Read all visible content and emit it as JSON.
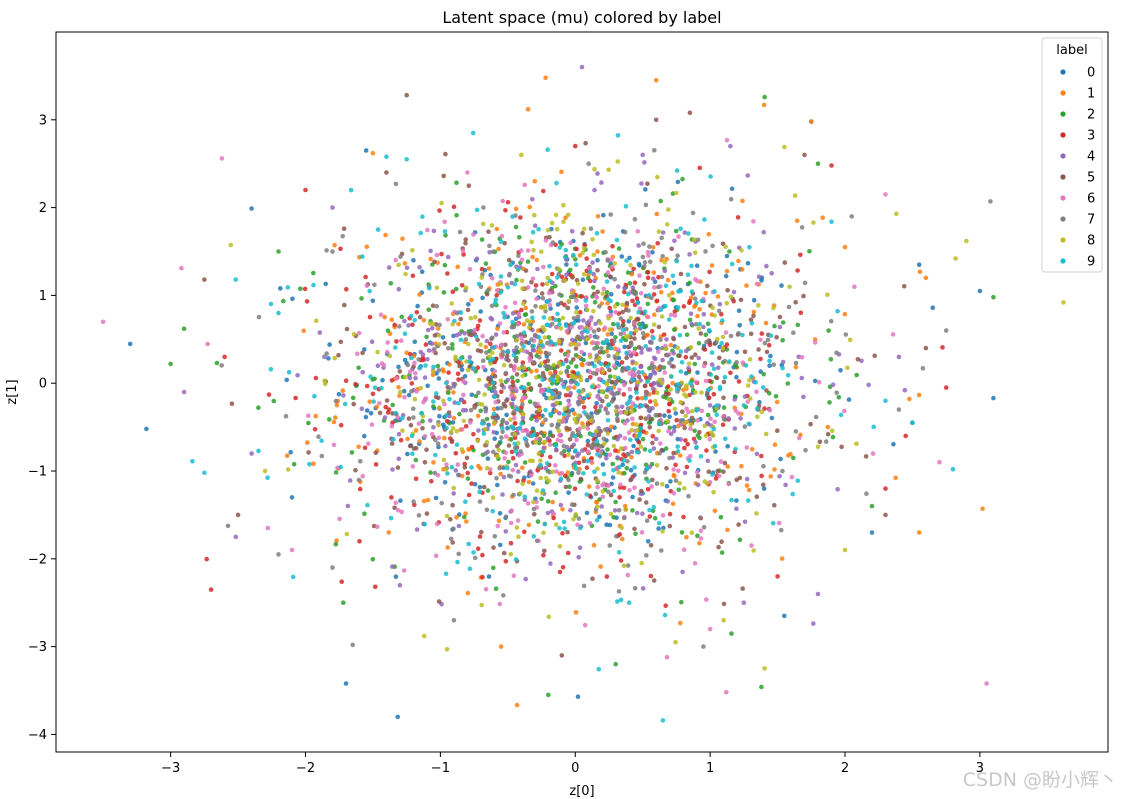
{
  "chart_data": {
    "type": "scatter",
    "title": "Latent space (mu) colored by label",
    "xlabel": "z[0]",
    "ylabel": "z[1]",
    "xlim": [
      -3.85,
      3.95
    ],
    "ylim": [
      -4.2,
      4.0
    ],
    "xticks": [
      -3,
      -2,
      -1,
      0,
      1,
      2,
      3
    ],
    "yticks": [
      -4,
      -3,
      -2,
      -1,
      0,
      1,
      2,
      3
    ],
    "grid": false,
    "legend": {
      "title": "label",
      "placement": "top-right"
    },
    "colors": [
      "#1f77b4",
      "#ff7f0e",
      "#2ca02c",
      "#d62728",
      "#9467bd",
      "#8c564b",
      "#e377c2",
      "#7f7f7f",
      "#bcbd22",
      "#17becf"
    ],
    "series": [
      {
        "name": "0",
        "points": [
          [
            -3.18,
            -0.52
          ],
          [
            -2.4,
            1.99
          ],
          [
            0.02,
            -3.57
          ],
          [
            2.65,
            0.86
          ],
          [
            3.1,
            -0.17
          ],
          [
            3.0,
            1.05
          ],
          [
            -1.55,
            2.65
          ],
          [
            1.55,
            -2.65
          ],
          [
            -1.7,
            -3.42
          ],
          [
            2.5,
            -0.45
          ],
          [
            2.55,
            1.35
          ],
          [
            1.75,
            2.98
          ],
          [
            -2.1,
            -1.3
          ],
          [
            2.2,
            -1.7
          ],
          [
            1.4,
            -1.2
          ],
          [
            -1.2,
            1.4
          ]
        ],
        "count": 330,
        "spread": [
          0.85,
          0.95
        ]
      },
      {
        "name": "1",
        "points": [
          [
            -0.22,
            3.48
          ],
          [
            0.6,
            3.45
          ],
          [
            1.4,
            3.17
          ],
          [
            -0.35,
            3.12
          ],
          [
            1.75,
            2.98
          ],
          [
            3.02,
            -1.43
          ],
          [
            -0.55,
            -3.0
          ],
          [
            2.55,
            -1.7
          ],
          [
            -1.5,
            2.62
          ],
          [
            2.6,
            1.2
          ],
          [
            2.0,
            1.55
          ],
          [
            -0.3,
            2.3
          ]
        ],
        "count": 330,
        "spread": [
          0.85,
          0.95
        ]
      },
      {
        "name": "2",
        "points": [
          [
            -0.2,
            -3.55
          ],
          [
            1.38,
            -3.46
          ],
          [
            0.3,
            -3.2
          ],
          [
            -2.9,
            0.62
          ],
          [
            -3.0,
            0.22
          ],
          [
            3.1,
            0.98
          ],
          [
            -1.72,
            -2.5
          ],
          [
            2.2,
            -1.4
          ],
          [
            1.8,
            2.5
          ],
          [
            -2.2,
            1.5
          ]
        ],
        "count": 330,
        "spread": [
          0.85,
          0.95
        ]
      },
      {
        "name": "3",
        "points": [
          [
            -2.7,
            -2.35
          ],
          [
            2.75,
            -0.05
          ],
          [
            1.9,
            2.48
          ],
          [
            -2.0,
            2.2
          ],
          [
            2.45,
            -0.6
          ],
          [
            -2.6,
            0.3
          ],
          [
            0.0,
            2.7
          ],
          [
            2.3,
            -1.2
          ],
          [
            -1.6,
            -1.8
          ],
          [
            1.5,
            -2.2
          ]
        ],
        "count": 330,
        "spread": [
          0.85,
          0.95
        ]
      },
      {
        "name": "4",
        "points": [
          [
            0.05,
            3.6
          ],
          [
            -2.9,
            -0.1
          ],
          [
            1.15,
            2.7
          ],
          [
            1.8,
            -2.4
          ],
          [
            -1.8,
            2.0
          ],
          [
            2.4,
            0.3
          ],
          [
            -2.4,
            -0.8
          ],
          [
            0.5,
            2.6
          ],
          [
            1.25,
            -2.5
          ],
          [
            -1.3,
            -2.3
          ]
        ],
        "count": 330,
        "spread": [
          0.85,
          0.95
        ]
      },
      {
        "name": "5",
        "points": [
          [
            -1.25,
            3.28
          ],
          [
            0.6,
            3.0
          ],
          [
            0.85,
            3.08
          ],
          [
            -2.75,
            1.18
          ],
          [
            2.3,
            -1.5
          ],
          [
            -0.1,
            -3.1
          ],
          [
            1.7,
            2.6
          ],
          [
            -2.5,
            -1.5
          ],
          [
            2.6,
            0.4
          ],
          [
            -1.4,
            2.4
          ]
        ],
        "count": 330,
        "spread": [
          0.85,
          0.95
        ]
      },
      {
        "name": "6",
        "points": [
          [
            -3.5,
            0.7
          ],
          [
            -2.62,
            2.56
          ],
          [
            -2.92,
            1.31
          ],
          [
            3.05,
            -3.42
          ],
          [
            1.12,
            -3.52
          ],
          [
            0.68,
            -3.12
          ],
          [
            2.3,
            2.15
          ],
          [
            -2.1,
            -1.9
          ],
          [
            2.7,
            -0.9
          ],
          [
            -0.8,
            2.4
          ],
          [
            1.0,
            -2.8
          ]
        ],
        "count": 330,
        "spread": [
          0.85,
          0.95
        ]
      },
      {
        "name": "7",
        "points": [
          [
            -1.65,
            -2.98
          ],
          [
            2.75,
            0.6
          ],
          [
            -2.2,
            -1.95
          ],
          [
            -1.8,
            -2.1
          ],
          [
            0.95,
            -3.0
          ],
          [
            2.05,
            1.9
          ],
          [
            -1.8,
            1.5
          ],
          [
            2.4,
            -0.3
          ],
          [
            0.1,
            2.5
          ],
          [
            -0.9,
            -2.7
          ]
        ],
        "count": 330,
        "spread": [
          0.85,
          0.95
        ]
      },
      {
        "name": "8",
        "points": [
          [
            3.62,
            0.92
          ],
          [
            2.9,
            1.62
          ],
          [
            2.38,
            1.93
          ],
          [
            -0.95,
            -3.03
          ],
          [
            -1.12,
            -2.88
          ],
          [
            2.82,
            1.42
          ],
          [
            -2.3,
            -1.0
          ],
          [
            1.1,
            -2.7
          ],
          [
            -0.4,
            2.6
          ],
          [
            2.0,
            -1.9
          ]
        ],
        "count": 330,
        "spread": [
          0.85,
          0.95
        ]
      },
      {
        "name": "9",
        "points": [
          [
            0.65,
            -3.84
          ],
          [
            -2.75,
            -1.02
          ],
          [
            -1.25,
            2.55
          ],
          [
            2.8,
            -0.98
          ],
          [
            2.5,
            -0.45
          ],
          [
            -1.4,
            2.58
          ],
          [
            1.9,
            1.84
          ],
          [
            -2.2,
            0.8
          ],
          [
            2.3,
            -0.2
          ],
          [
            0.4,
            -2.5
          ]
        ],
        "count": 330,
        "spread": [
          0.85,
          0.95
        ]
      }
    ]
  },
  "watermark": "CSDN @盼小辉丶"
}
